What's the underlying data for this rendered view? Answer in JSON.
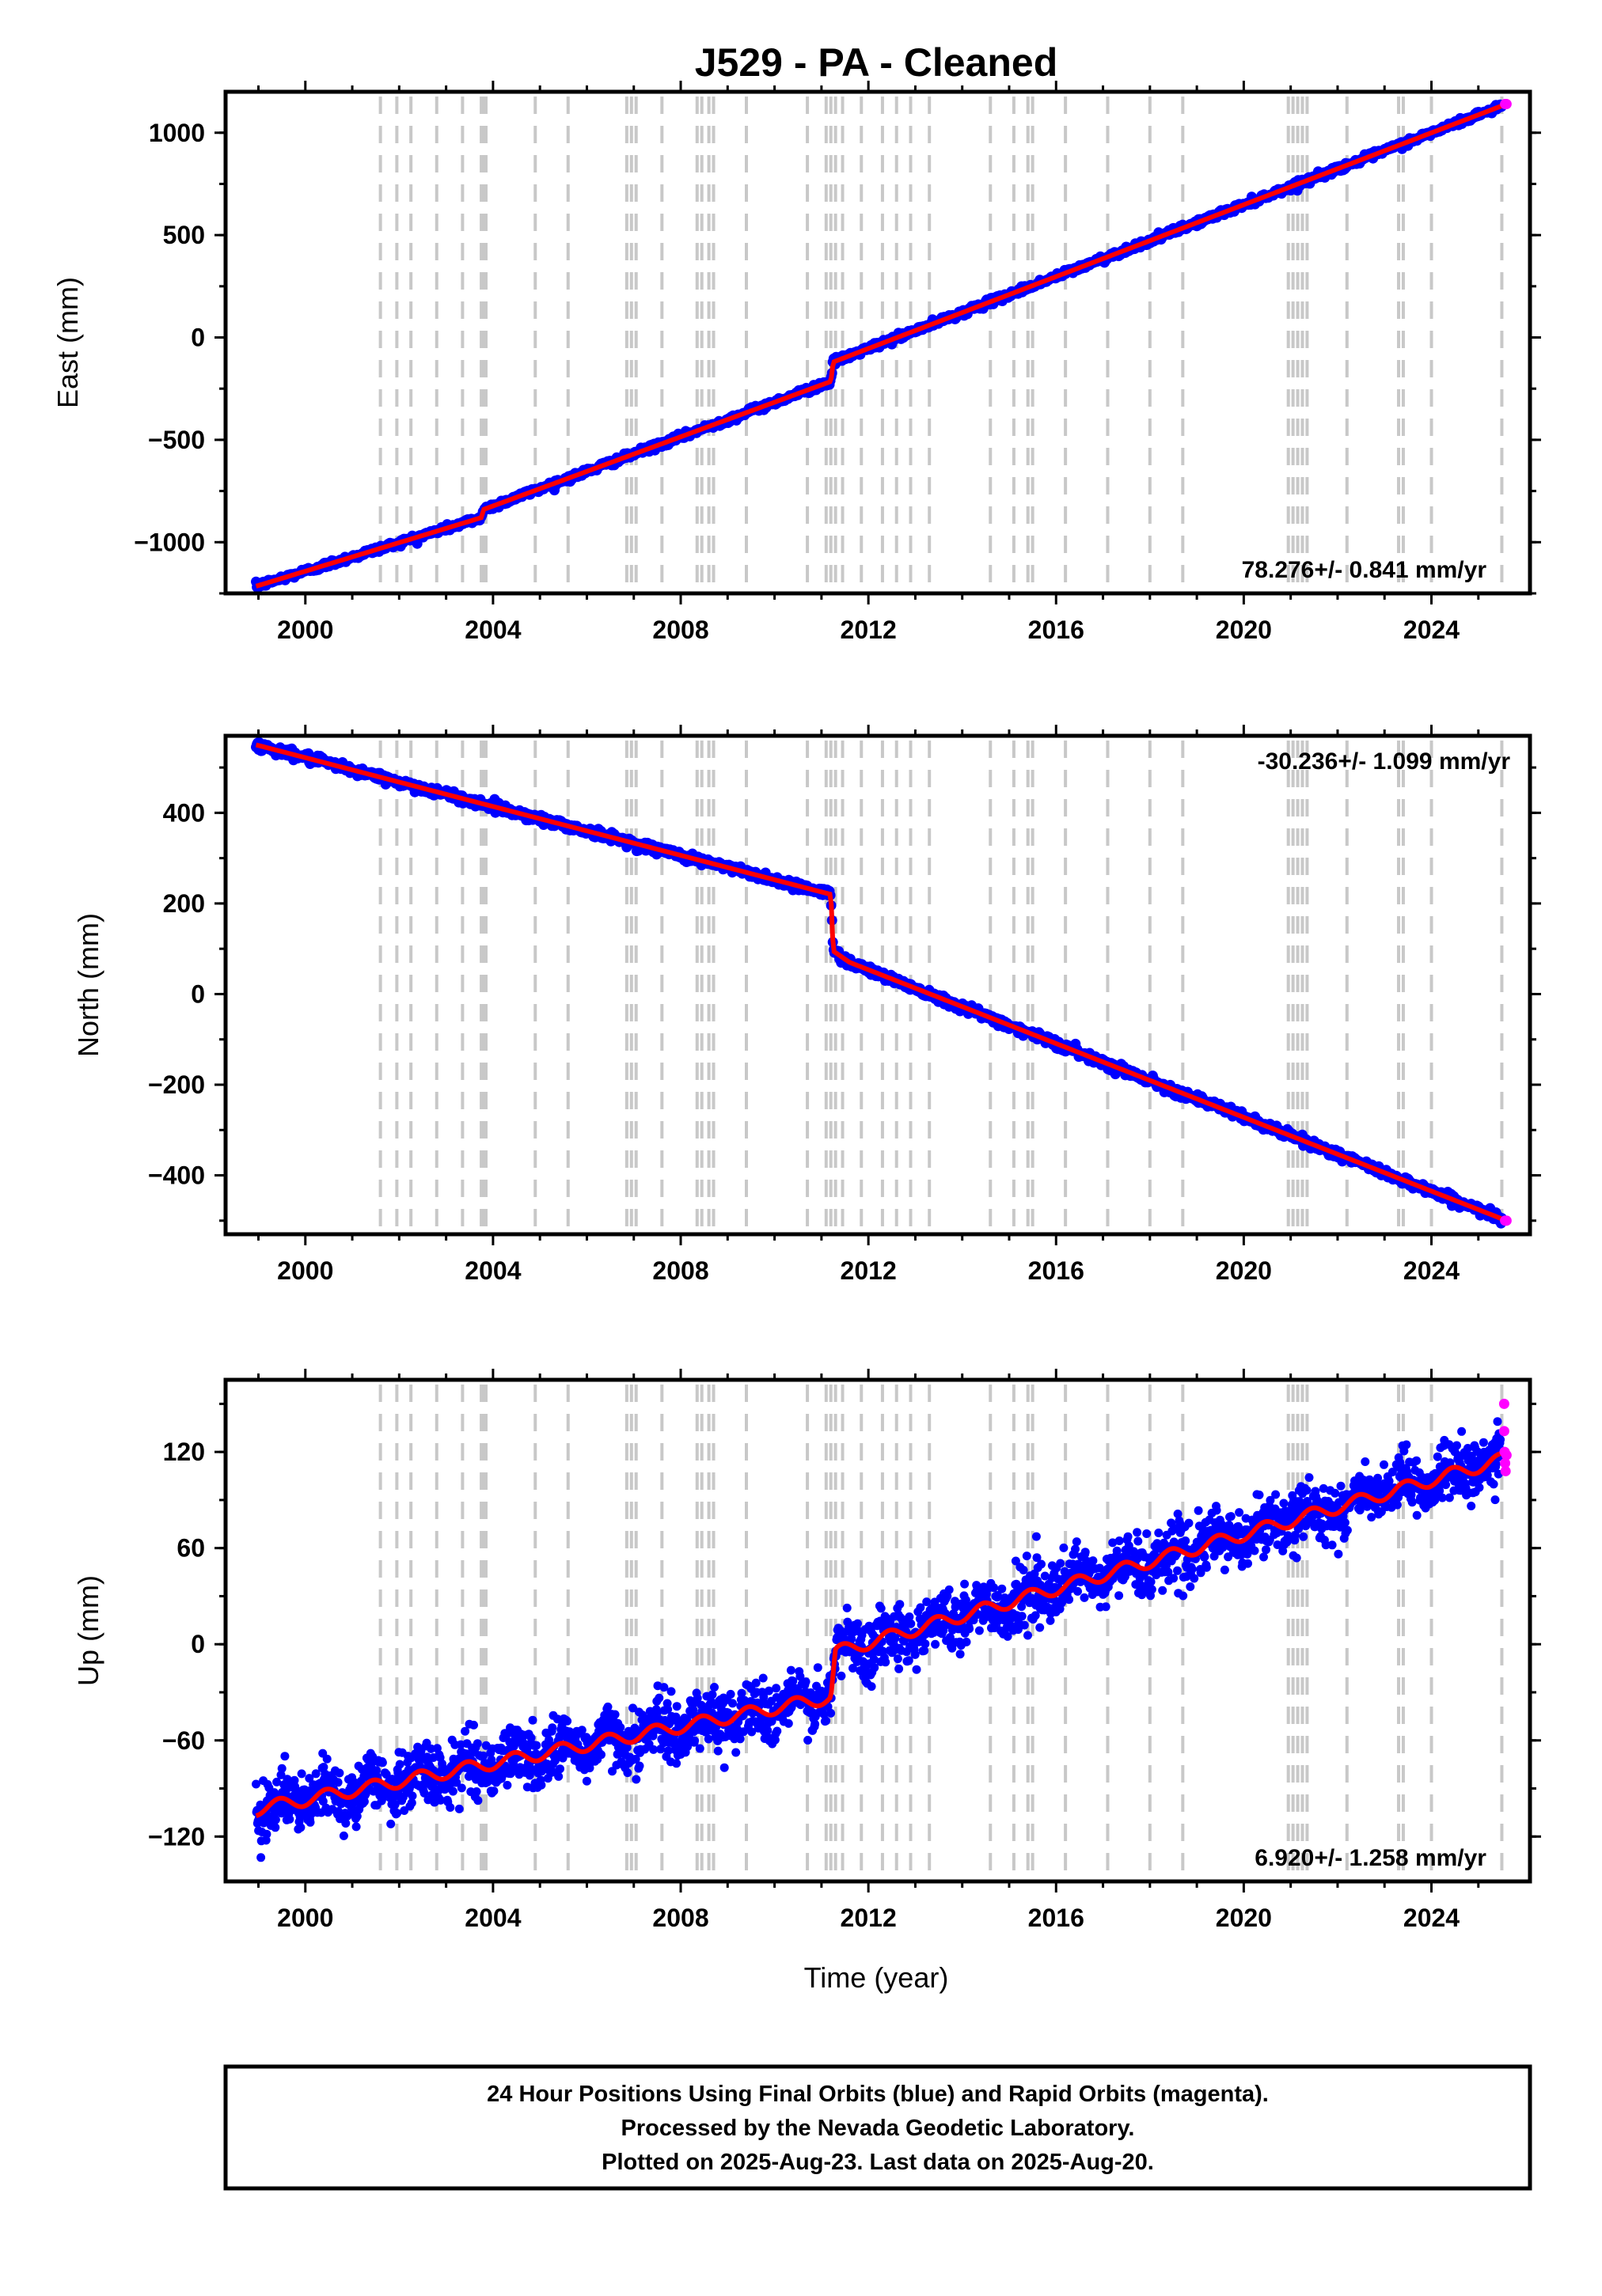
{
  "chart_data": {
    "type": "scatter",
    "title": "J529  - PA - Cleaned",
    "xlabel": "Time (year)",
    "xlim": [
      1998.3,
      2026.1
    ],
    "xticks": [
      2000,
      2004,
      2008,
      2012,
      2016,
      2020,
      2024
    ],
    "event_lines": [
      2001.6,
      2001.95,
      2002.25,
      2002.8,
      2003.35,
      2003.75,
      2003.8,
      2003.85,
      2004.9,
      2005.6,
      2006.85,
      2006.95,
      2007.05,
      2007.6,
      2008.35,
      2008.45,
      2008.6,
      2008.7,
      2009.4,
      2010.7,
      2011.1,
      2011.2,
      2011.3,
      2011.45,
      2011.85,
      2012.3,
      2012.6,
      2012.9,
      2013.3,
      2014.6,
      2015.1,
      2015.4,
      2015.5,
      2016.2,
      2017.1,
      2018.0,
      2018.7,
      2020.95,
      2021.05,
      2021.15,
      2021.25,
      2021.35,
      2022.2,
      2023.3,
      2023.4,
      2024.0,
      2025.5
    ],
    "panels": [
      {
        "ylabel": "East (mm)",
        "ylim": [
          -1250,
          1200
        ],
        "yticks": [
          -1000,
          -500,
          0,
          500,
          1000
        ],
        "rate": "78.276+/- 0.841 mm/yr",
        "rate_position": "bottom-right",
        "model_line": [
          [
            1998.95,
            -1215
          ],
          [
            2003.75,
            -880
          ],
          [
            2003.8,
            -840
          ],
          [
            2011.2,
            -215
          ],
          [
            2011.25,
            -120
          ],
          [
            2025.6,
            1140
          ]
        ],
        "scatter_sigma": 8
      },
      {
        "ylabel": "North (mm)",
        "ylim": [
          -530,
          570
        ],
        "yticks": [
          -400,
          -200,
          0,
          200,
          400
        ],
        "rate": "-30.236+/- 1.099 mm/yr",
        "rate_position": "top-right",
        "model_line": [
          [
            1998.95,
            550
          ],
          [
            2011.2,
            220
          ],
          [
            2011.25,
            95
          ],
          [
            2011.6,
            70
          ],
          [
            2025.6,
            -500
          ]
        ],
        "scatter_sigma": 5
      },
      {
        "ylabel": "Up (mm)",
        "ylim": [
          -148,
          165
        ],
        "yticks": [
          -120,
          -60,
          0,
          60,
          120
        ],
        "rate": "6.920+/- 1.258 mm/yr",
        "rate_position": "bottom-right",
        "model_line": [
          [
            1998.95,
            -103
          ],
          [
            2011.2,
            -33
          ],
          [
            2011.3,
            -5
          ],
          [
            2025.6,
            116
          ]
        ],
        "scatter_sigma": 9,
        "rapid_points": [
          [
            2025.55,
            150
          ],
          [
            2025.55,
            133
          ],
          [
            2025.56,
            120
          ],
          [
            2025.57,
            113
          ],
          [
            2025.58,
            108
          ],
          [
            2025.6,
            118
          ]
        ]
      }
    ],
    "colors": {
      "final_orbits": "#0000ff",
      "rapid_orbits": "#ff00ff",
      "model": "#ff0000",
      "event_lines": "#c8c8c8"
    }
  },
  "footer": {
    "line1": "24 Hour Positions Using Final Orbits (blue) and Rapid Orbits (magenta).",
    "line2": "Processed by the Nevada Geodetic Laboratory.",
    "line3": "Plotted on 2025-Aug-23. Last data on 2025-Aug-20."
  }
}
